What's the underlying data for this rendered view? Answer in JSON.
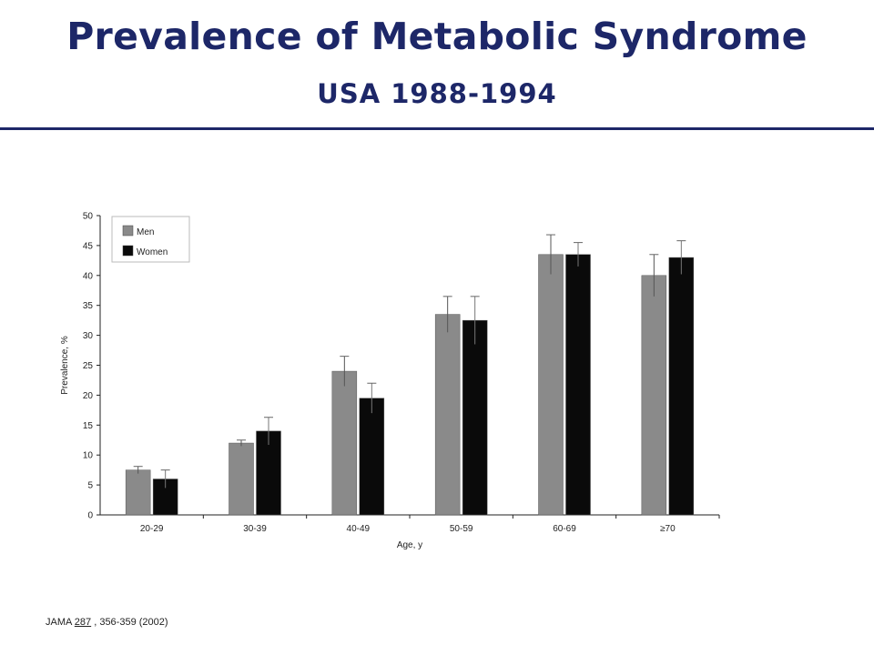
{
  "slide": {
    "title": "Prevalence of Metabolic Syndrome",
    "subtitle": "USA 1988-1994"
  },
  "citation": {
    "journal": "JAMA ",
    "volume": "287",
    "rest": " , 356-359 (2002)"
  },
  "colors": {
    "title": "#1d2768",
    "men": "#8a8a8a",
    "women": "#0a0a0a",
    "axis": "#222222"
  },
  "chart_data": {
    "type": "bar",
    "title": "",
    "xlabel": "Age, y",
    "ylabel": "Prevalence, %",
    "ylim": [
      0,
      50
    ],
    "yticks": [
      0,
      5,
      10,
      15,
      20,
      25,
      30,
      35,
      40,
      45,
      50
    ],
    "categories": [
      "20-29",
      "30-39",
      "40-49",
      "50-59",
      "60-69",
      "≥70"
    ],
    "series": [
      {
        "name": "Men",
        "values": [
          7.5,
          12,
          24,
          33.5,
          43.5,
          40
        ],
        "error": [
          0.6,
          0.5,
          2.5,
          3,
          3.3,
          3.5
        ]
      },
      {
        "name": "Women",
        "values": [
          6,
          14,
          19.5,
          32.5,
          43.5,
          43
        ],
        "error": [
          1.5,
          2.3,
          2.5,
          4,
          2,
          2.8
        ]
      }
    ],
    "legend": "top-left",
    "grid": false,
    "error_bars": true
  }
}
